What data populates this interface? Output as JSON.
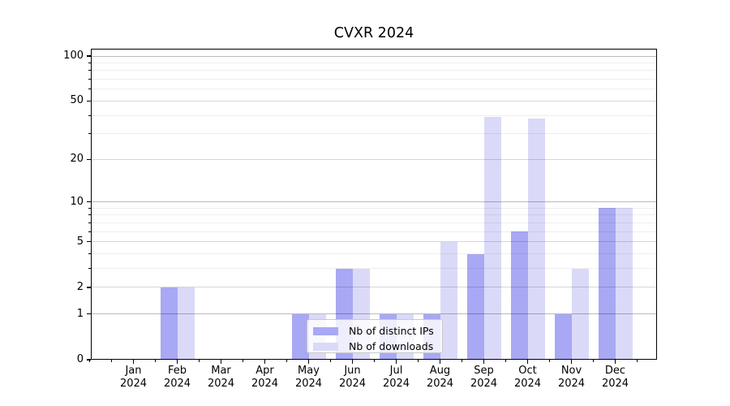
{
  "chart_data": {
    "type": "bar",
    "title": "CVXR 2024",
    "categories": [
      "Jan 2024",
      "Feb 2024",
      "Mar 2024",
      "Apr 2024",
      "May 2024",
      "Jun 2024",
      "Jul 2024",
      "Aug 2024",
      "Sep 2024",
      "Oct 2024",
      "Nov 2024",
      "Dec 2024"
    ],
    "series": [
      {
        "name": "Nb of distinct IPs",
        "color": "#a8a8f4",
        "values": [
          0,
          2,
          0,
          0,
          1,
          3,
          1,
          1,
          4,
          6,
          1,
          9
        ]
      },
      {
        "name": "Nb of downloads",
        "color": "#dadaf8",
        "values": [
          0,
          2,
          0,
          0,
          1,
          3,
          1,
          5,
          39,
          38,
          3,
          9
        ]
      }
    ],
    "yscale": "log1p",
    "ylim": [
      0,
      112
    ],
    "yticks_labeled": [
      0,
      1,
      2,
      5,
      10,
      20,
      50,
      100
    ],
    "yticks_minor": [
      3,
      4,
      6,
      7,
      8,
      9,
      30,
      40,
      60,
      70,
      80,
      90
    ],
    "grid": "on",
    "legend_position": "lower center",
    "xlabel": "",
    "ylabel": ""
  },
  "colors": {
    "bar_distinct_ips": "#a8a8f4",
    "bar_downloads": "#dadaf8",
    "grid_strong": "rgba(0,0,0,0.27)",
    "grid_mid": "rgba(0,0,0,0.16)",
    "grid_minor": "rgba(0,0,0,0.065)",
    "frame": "#000000",
    "legend_border": "#c9c9c9"
  }
}
